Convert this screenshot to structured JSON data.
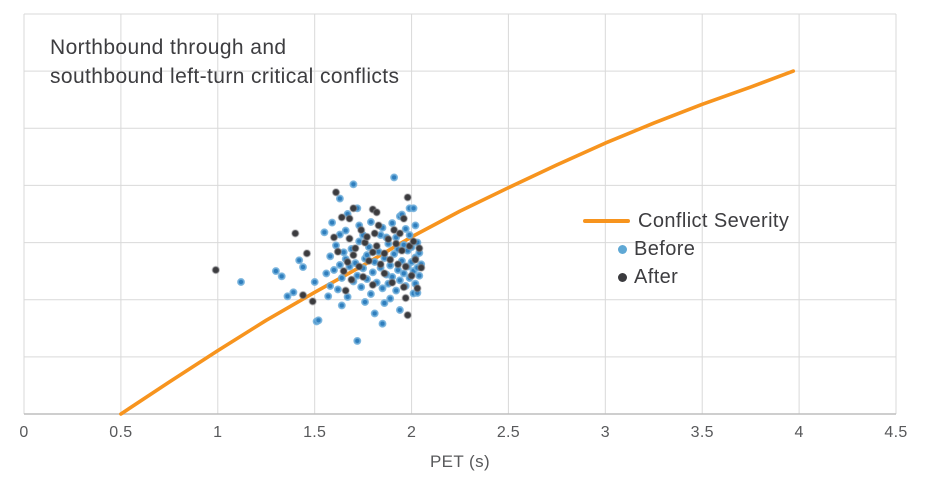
{
  "page": {
    "background": "#ffffff"
  },
  "chart_data": {
    "type": "scatter",
    "title": "Northbound through and southbound left-turn critical conflicts",
    "title_lines": [
      "Northbound through and",
      "southbound left-turn critical conflicts"
    ],
    "xlabel": "PET (s)",
    "ylabel": "",
    "xlim": [
      0,
      4.5
    ],
    "ylim": [
      0,
      7
    ],
    "x_ticks": [
      "0",
      "0.5",
      "1",
      "1.5",
      "2",
      "2.5",
      "3",
      "3.5",
      "4",
      "4.5"
    ],
    "x_tick_step": 0.5,
    "y_gridline_divisions": 7,
    "grid": true,
    "legend_position": "center-right",
    "colors": {
      "grid": "#d9d9d9",
      "axis": "#bdbdbd",
      "title_text": "#3d3d40",
      "tick_text": "#58595b",
      "accent_orange": "#f7941e",
      "accent_blue": "#2f7ebd",
      "accent_dark": "#3b3b3e"
    },
    "line_series": {
      "name": "Conflict Severity",
      "color": "#f7941e",
      "points": [
        [
          0.5,
          0
        ],
        [
          0.75,
          0.56
        ],
        [
          1.0,
          1.11
        ],
        [
          1.25,
          1.64
        ],
        [
          1.5,
          2.13
        ],
        [
          1.75,
          2.6
        ],
        [
          2.0,
          3.1
        ],
        [
          2.25,
          3.55
        ],
        [
          2.5,
          3.96
        ],
        [
          2.75,
          4.36
        ],
        [
          3.0,
          4.74
        ],
        [
          3.25,
          5.09
        ],
        [
          3.5,
          5.42
        ],
        [
          3.75,
          5.72
        ],
        [
          3.97,
          6.0
        ]
      ]
    },
    "scatter_series": [
      {
        "name": "Before",
        "marker_color": "#2f7ebd",
        "marker_halo": "#6faedb",
        "legend_dot": "#5fa8d5",
        "points": [
          [
            1.12,
            2.31
          ],
          [
            1.3,
            2.5
          ],
          [
            1.33,
            2.41
          ],
          [
            1.36,
            2.06
          ],
          [
            1.39,
            2.13
          ],
          [
            1.42,
            2.69
          ],
          [
            1.44,
            2.57
          ],
          [
            1.5,
            2.31
          ],
          [
            1.51,
            1.62
          ],
          [
            1.52,
            1.64
          ],
          [
            1.55,
            3.18
          ],
          [
            1.57,
            2.06
          ],
          [
            1.56,
            2.46
          ],
          [
            1.58,
            2.76
          ],
          [
            1.58,
            2.24
          ],
          [
            1.59,
            3.35
          ],
          [
            1.6,
            2.52
          ],
          [
            1.61,
            2.95
          ],
          [
            1.62,
            2.18
          ],
          [
            1.63,
            3.77
          ],
          [
            1.63,
            3.14
          ],
          [
            1.63,
            2.61
          ],
          [
            1.64,
            2.38
          ],
          [
            1.64,
            1.9
          ],
          [
            1.65,
            2.83
          ],
          [
            1.66,
            3.21
          ],
          [
            1.66,
            2.71
          ],
          [
            1.67,
            3.5
          ],
          [
            1.67,
            2.05
          ],
          [
            1.68,
            2.58
          ],
          [
            1.69,
            2.89
          ],
          [
            1.7,
            4.02
          ],
          [
            1.7,
            2.32
          ],
          [
            1.71,
            2.64
          ],
          [
            1.72,
            3.6
          ],
          [
            1.72,
            2.42
          ],
          [
            1.72,
            1.28
          ],
          [
            1.73,
            3.3
          ],
          [
            1.73,
            3.02
          ],
          [
            1.74,
            2.22
          ],
          [
            1.75,
            3.13
          ],
          [
            1.75,
            2.55
          ],
          [
            1.76,
            2.72
          ],
          [
            1.76,
            1.96
          ],
          [
            1.77,
            2.78
          ],
          [
            1.77,
            2.36
          ],
          [
            1.78,
            2.92
          ],
          [
            1.79,
            3.36
          ],
          [
            1.79,
            2.1
          ],
          [
            1.8,
            2.48
          ],
          [
            1.81,
            2.66
          ],
          [
            1.81,
            1.76
          ],
          [
            1.82,
            2.3
          ],
          [
            1.83,
            2.84
          ],
          [
            1.84,
            3.13
          ],
          [
            1.84,
            2.56
          ],
          [
            1.85,
            3.26
          ],
          [
            1.85,
            2.2
          ],
          [
            1.85,
            1.58
          ],
          [
            1.86,
            1.94
          ],
          [
            1.86,
            2.73
          ],
          [
            1.87,
            3.09
          ],
          [
            1.87,
            2.44
          ],
          [
            1.88,
            2.98
          ],
          [
            1.88,
            2.28
          ],
          [
            1.89,
            2.6
          ],
          [
            1.89,
            2.02
          ],
          [
            1.9,
            3.34
          ],
          [
            1.9,
            2.4
          ],
          [
            1.91,
            4.14
          ],
          [
            1.91,
            2.8
          ],
          [
            1.92,
            3.09
          ],
          [
            1.92,
            2.16
          ],
          [
            1.93,
            2.52
          ],
          [
            1.93,
            2.88
          ],
          [
            1.94,
            3.46
          ],
          [
            1.94,
            1.82
          ],
          [
            1.94,
            2.34
          ],
          [
            1.95,
            3.49
          ],
          [
            1.95,
            2.68
          ],
          [
            1.96,
            2.46
          ],
          [
            1.96,
            2.96
          ],
          [
            1.97,
            3.24
          ],
          [
            1.97,
            2.24
          ],
          [
            1.98,
            2.58
          ],
          [
            1.98,
            2.86
          ],
          [
            1.99,
            3.6
          ],
          [
            1.99,
            3.13
          ],
          [
            1.99,
            2.38
          ],
          [
            2.0,
            2.66
          ],
          [
            2.0,
            2.92
          ],
          [
            2.01,
            3.6
          ],
          [
            2.01,
            2.11
          ],
          [
            2.01,
            2.5
          ],
          [
            2.02,
            3.3
          ],
          [
            2.02,
            2.74
          ],
          [
            2.02,
            2.28
          ],
          [
            2.03,
            2.56
          ],
          [
            2.03,
            3.0
          ],
          [
            2.03,
            2.12
          ],
          [
            2.04,
            2.42
          ],
          [
            2.04,
            2.82
          ],
          [
            2.05,
            2.62
          ]
        ]
      },
      {
        "name": "After",
        "marker_color": "#3b3b3e",
        "marker_halo": "#8a8a8e",
        "legend_dot": "#3b3b3e",
        "points": [
          [
            0.99,
            2.52
          ],
          [
            1.4,
            3.16
          ],
          [
            1.44,
            2.08
          ],
          [
            1.46,
            2.81
          ],
          [
            1.49,
            1.97
          ],
          [
            1.6,
            3.09
          ],
          [
            1.61,
            3.88
          ],
          [
            1.62,
            2.84
          ],
          [
            1.64,
            3.44
          ],
          [
            1.65,
            2.5
          ],
          [
            1.66,
            2.16
          ],
          [
            1.67,
            2.66
          ],
          [
            1.68,
            3.42
          ],
          [
            1.68,
            3.07
          ],
          [
            1.69,
            2.35
          ],
          [
            1.7,
            3.6
          ],
          [
            1.7,
            2.78
          ],
          [
            1.71,
            2.9
          ],
          [
            1.73,
            2.58
          ],
          [
            1.74,
            3.22
          ],
          [
            1.75,
            2.4
          ],
          [
            1.76,
            3.0
          ],
          [
            1.77,
            3.1
          ],
          [
            1.78,
            2.68
          ],
          [
            1.8,
            3.58
          ],
          [
            1.8,
            2.83
          ],
          [
            1.8,
            2.26
          ],
          [
            1.81,
            3.16
          ],
          [
            1.82,
            3.53
          ],
          [
            1.82,
            2.94
          ],
          [
            1.83,
            3.3
          ],
          [
            1.84,
            2.62
          ],
          [
            1.86,
            2.81
          ],
          [
            1.86,
            2.46
          ],
          [
            1.88,
            3.06
          ],
          [
            1.89,
            2.7
          ],
          [
            1.9,
            2.3
          ],
          [
            1.91,
            3.22
          ],
          [
            1.92,
            2.98
          ],
          [
            1.93,
            2.62
          ],
          [
            1.94,
            3.16
          ],
          [
            1.95,
            2.86
          ],
          [
            1.96,
            3.42
          ],
          [
            1.96,
            2.22
          ],
          [
            1.97,
            2.03
          ],
          [
            1.97,
            2.58
          ],
          [
            1.98,
            1.73
          ],
          [
            1.98,
            3.79
          ],
          [
            1.99,
            2.94
          ],
          [
            2.0,
            2.42
          ],
          [
            2.01,
            3.02
          ],
          [
            2.02,
            2.7
          ],
          [
            2.03,
            2.2
          ],
          [
            2.04,
            2.9
          ],
          [
            2.05,
            2.56
          ]
        ]
      }
    ]
  }
}
